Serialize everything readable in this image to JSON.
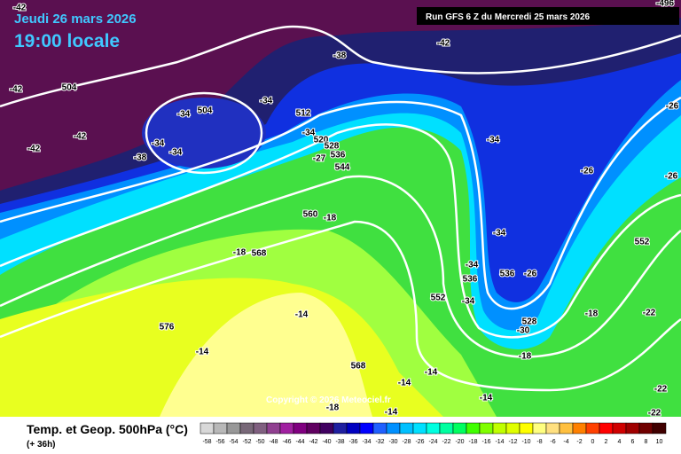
{
  "header": {
    "date": "Jeudi 26 mars 2026",
    "time": "19:00 locale",
    "run": "Run GFS 6 Z du Mercredi 25 mars 2026"
  },
  "footer": {
    "title": "Temp. et Geop. 500hPa (°C)",
    "lead": "(+ 36h)",
    "copyright": "Copyright © 2026 Meteociel.fr"
  },
  "legend": {
    "values": [
      -58,
      -56,
      -54,
      -52,
      -50,
      -48,
      -46,
      -44,
      -42,
      -40,
      -38,
      -36,
      -34,
      -32,
      -30,
      -28,
      -26,
      -24,
      -22,
      -20,
      -18,
      -16,
      -14,
      -12,
      -10,
      -8,
      -6,
      -4,
      -2,
      0,
      2,
      4,
      6,
      8,
      10
    ],
    "colors": [
      "#d8d8d8",
      "#b8b8b8",
      "#989898",
      "#786878",
      "#806080",
      "#904090",
      "#a020a0",
      "#800080",
      "#600060",
      "#400060",
      "#2020a0",
      "#0000c0",
      "#0000ff",
      "#2060ff",
      "#0090ff",
      "#00c0ff",
      "#00e0ff",
      "#00ffe0",
      "#00ffa0",
      "#00ff60",
      "#40ff00",
      "#80ff00",
      "#c0ff00",
      "#e0ff00",
      "#ffff00",
      "#ffff80",
      "#ffe080",
      "#ffc040",
      "#ff8000",
      "#ff4000",
      "#ff0000",
      "#d00000",
      "#a00000",
      "#700000",
      "#400000"
    ]
  },
  "map_labels": [
    "-42",
    "-42",
    "-42",
    "504",
    "-42",
    "-42",
    "504",
    "-34",
    "-34",
    "-34",
    "-38",
    "-34",
    "512",
    "-34",
    "520",
    "528",
    "536",
    "-27",
    "544",
    "560",
    "-18",
    "-18",
    "568",
    "-14",
    "576",
    "-14",
    "568",
    "552",
    "-34",
    "-34",
    "-34",
    "536",
    "536",
    "-26",
    "-34",
    "528",
    "-30",
    "-18",
    "-22",
    "552",
    "-26",
    "-26",
    "-26",
    "-18",
    "-14",
    "-14",
    "-14",
    "-14",
    "-18",
    "-22",
    "-22",
    "-38",
    "-496"
  ]
}
